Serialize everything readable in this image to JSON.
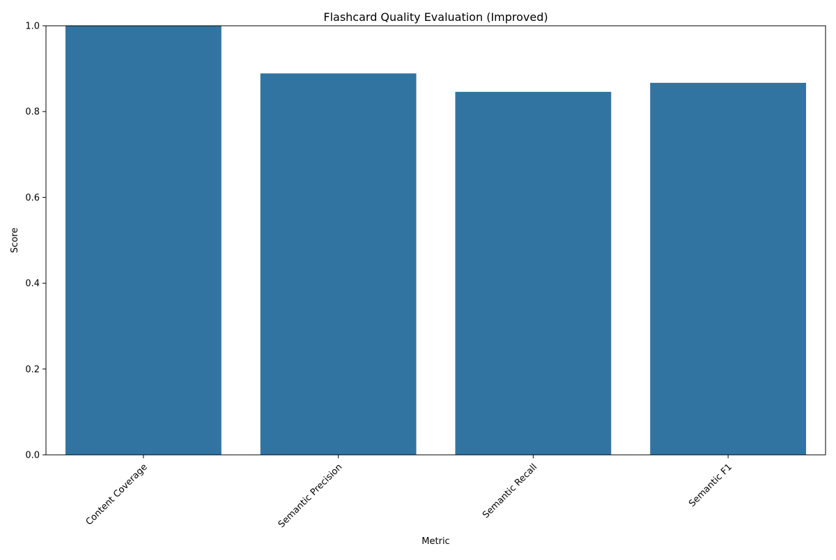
{
  "chart_data": {
    "type": "bar",
    "title": "Flashcard Quality Evaluation (Improved)",
    "xlabel": "Metric",
    "ylabel": "Score",
    "categories": [
      "Content Coverage",
      "Semantic Precision",
      "Semantic Recall",
      "Semantic F1"
    ],
    "values": [
      1.0,
      0.889,
      0.846,
      0.867
    ],
    "ylim": [
      0,
      1.0
    ],
    "yticks": [
      "0.0",
      "0.2",
      "0.4",
      "0.6",
      "0.8",
      "1.0"
    ],
    "grid": false,
    "bar_color": "#3274a1",
    "xtick_rotation_deg": 45
  }
}
